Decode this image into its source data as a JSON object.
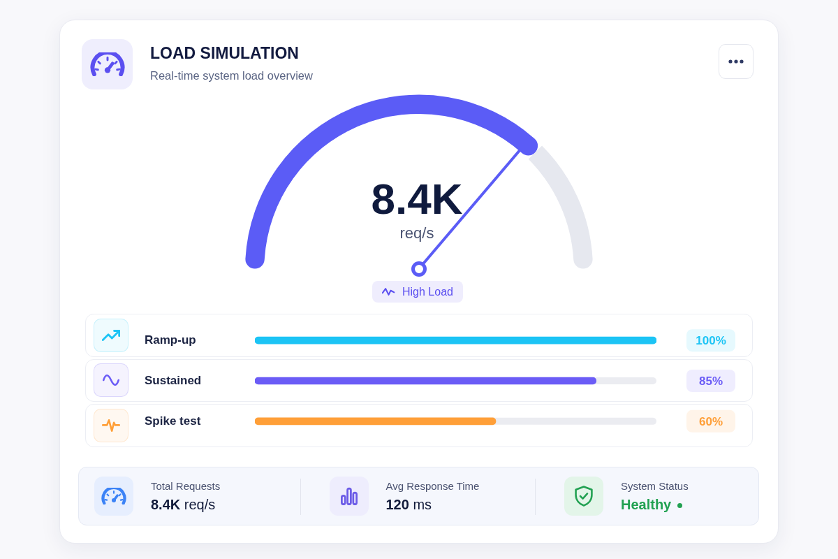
{
  "chart_data": [
    {
      "type": "donut",
      "title": "LOAD SIMULATION",
      "subtitle": "Real-time system load overview",
      "categories": [
        null,
        null
      ],
      "values": [
        75,
        25
      ],
      "colors": [
        "#5b5cf6",
        "#e6e8ef"
      ],
      "needle": null,
      "annotations": [
        "8.4K",
        "req/s",
        "High Load"
      ]
    },
    {
      "type": "bar",
      "orientation": "horizontal",
      "categories": [
        "Ramp-up",
        "Sustained",
        "Spike test"
      ],
      "values": [
        100,
        85,
        60
      ],
      "colors": [
        "#1cc4f5",
        "#6b5cf6",
        "#ff9f38"
      ],
      "value_labels": [
        "100%",
        "85%",
        "60%"
      ],
      "xlim": [
        0,
        100
      ],
      "tick_labels": "y"
    },
    {
      "type": "other",
      "annotations": [
        "Total Requests",
        "8.4K req/s",
        "Avg Response Time",
        "120 ms",
        "System Status",
        "Healthy"
      ]
    }
  ]
}
